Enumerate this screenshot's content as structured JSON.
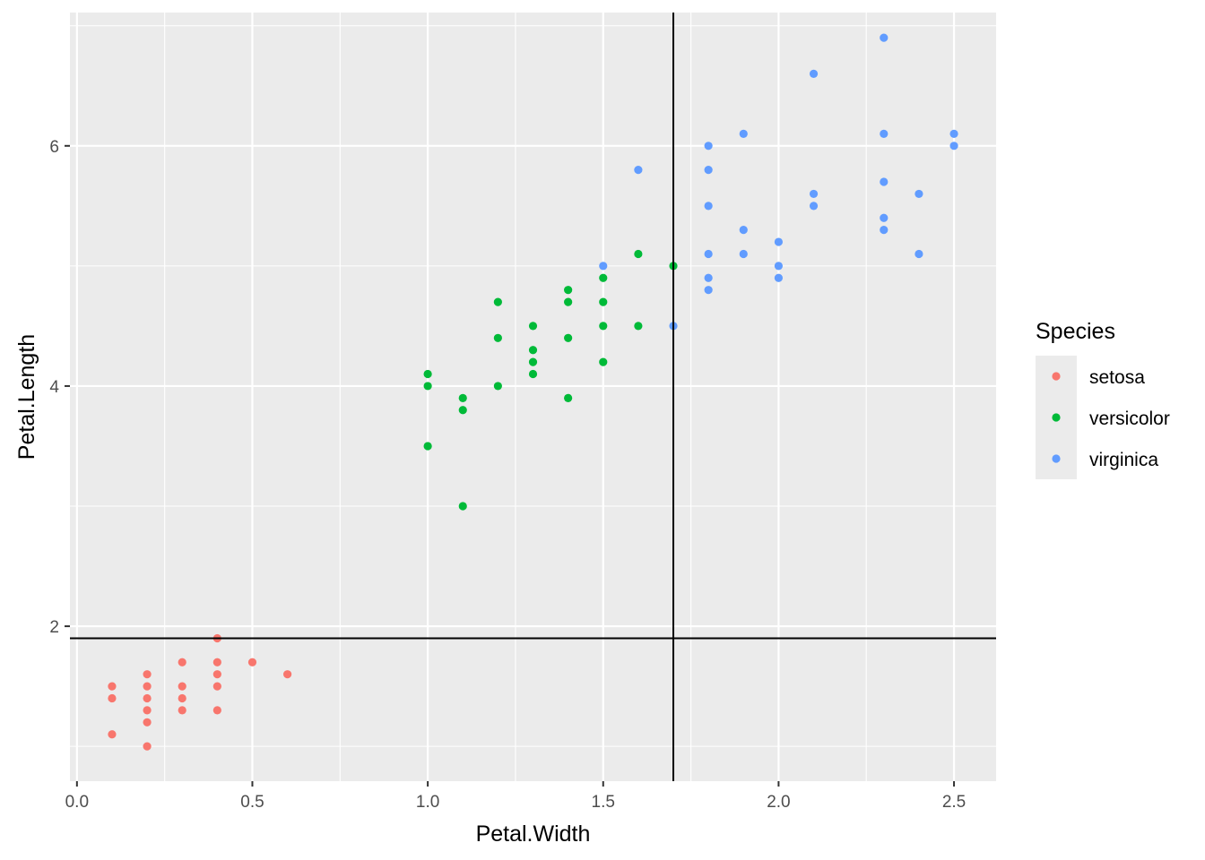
{
  "chart_data": {
    "type": "scatter",
    "title": "",
    "xlabel": "Petal.Width",
    "ylabel": "Petal.Length",
    "xlim": [
      -0.02,
      2.62
    ],
    "ylim": [
      0.71,
      7.11
    ],
    "x_ticks": [
      0.0,
      0.5,
      1.0,
      1.5,
      2.0,
      2.5
    ],
    "x_tick_labels": [
      "0.0",
      "0.5",
      "1.0",
      "1.5",
      "2.0",
      "2.5"
    ],
    "y_ticks": [
      2,
      4,
      6
    ],
    "y_tick_labels": [
      "2",
      "4",
      "6"
    ],
    "grid": true,
    "panel_background": "#ebebeb",
    "grid_color": "#ffffff",
    "legend": {
      "title": "Species",
      "placement": "right"
    },
    "reference_lines": {
      "vertical_x": 1.7,
      "horizontal_y": 1.9,
      "color": "#000000"
    },
    "series": [
      {
        "name": "setosa",
        "color": "#F8766D",
        "points": [
          [
            0.1,
            1.5
          ],
          [
            0.1,
            1.4
          ],
          [
            0.1,
            1.1
          ],
          [
            0.2,
            1.6
          ],
          [
            0.2,
            1.5
          ],
          [
            0.2,
            1.4
          ],
          [
            0.2,
            1.3
          ],
          [
            0.2,
            1.2
          ],
          [
            0.2,
            1.0
          ],
          [
            0.3,
            1.7
          ],
          [
            0.3,
            1.5
          ],
          [
            0.3,
            1.4
          ],
          [
            0.3,
            1.3
          ],
          [
            0.4,
            1.9
          ],
          [
            0.4,
            1.7
          ],
          [
            0.4,
            1.6
          ],
          [
            0.4,
            1.5
          ],
          [
            0.4,
            1.3
          ],
          [
            0.5,
            1.7
          ],
          [
            0.6,
            1.6
          ]
        ]
      },
      {
        "name": "versicolor",
        "color": "#00BA38",
        "points": [
          [
            1.0,
            4.1
          ],
          [
            1.0,
            4.0
          ],
          [
            1.0,
            3.5
          ],
          [
            1.1,
            3.9
          ],
          [
            1.1,
            3.8
          ],
          [
            1.1,
            3.0
          ],
          [
            1.2,
            4.7
          ],
          [
            1.2,
            4.4
          ],
          [
            1.2,
            4.0
          ],
          [
            1.3,
            4.5
          ],
          [
            1.3,
            4.3
          ],
          [
            1.3,
            4.2
          ],
          [
            1.3,
            4.1
          ],
          [
            1.4,
            4.8
          ],
          [
            1.4,
            4.7
          ],
          [
            1.4,
            4.4
          ],
          [
            1.4,
            3.9
          ],
          [
            1.5,
            4.9
          ],
          [
            1.5,
            4.7
          ],
          [
            1.5,
            4.5
          ],
          [
            1.5,
            4.2
          ],
          [
            1.6,
            5.1
          ],
          [
            1.6,
            4.5
          ],
          [
            1.7,
            5.0
          ]
        ]
      },
      {
        "name": "virginica",
        "color": "#619CFF",
        "points": [
          [
            1.5,
            5.0
          ],
          [
            1.6,
            5.8
          ],
          [
            1.7,
            4.5
          ],
          [
            1.8,
            6.0
          ],
          [
            1.8,
            5.8
          ],
          [
            1.8,
            5.5
          ],
          [
            1.8,
            5.1
          ],
          [
            1.8,
            4.9
          ],
          [
            1.8,
            4.8
          ],
          [
            1.9,
            6.1
          ],
          [
            1.9,
            5.3
          ],
          [
            1.9,
            5.1
          ],
          [
            2.0,
            5.2
          ],
          [
            2.0,
            5.0
          ],
          [
            2.0,
            4.9
          ],
          [
            2.1,
            6.6
          ],
          [
            2.1,
            5.6
          ],
          [
            2.1,
            5.5
          ],
          [
            2.3,
            6.9
          ],
          [
            2.3,
            6.1
          ],
          [
            2.3,
            5.7
          ],
          [
            2.3,
            5.4
          ],
          [
            2.3,
            5.3
          ],
          [
            2.4,
            5.6
          ],
          [
            2.4,
            5.1
          ],
          [
            2.5,
            6.1
          ],
          [
            2.5,
            6.0
          ]
        ]
      }
    ]
  }
}
